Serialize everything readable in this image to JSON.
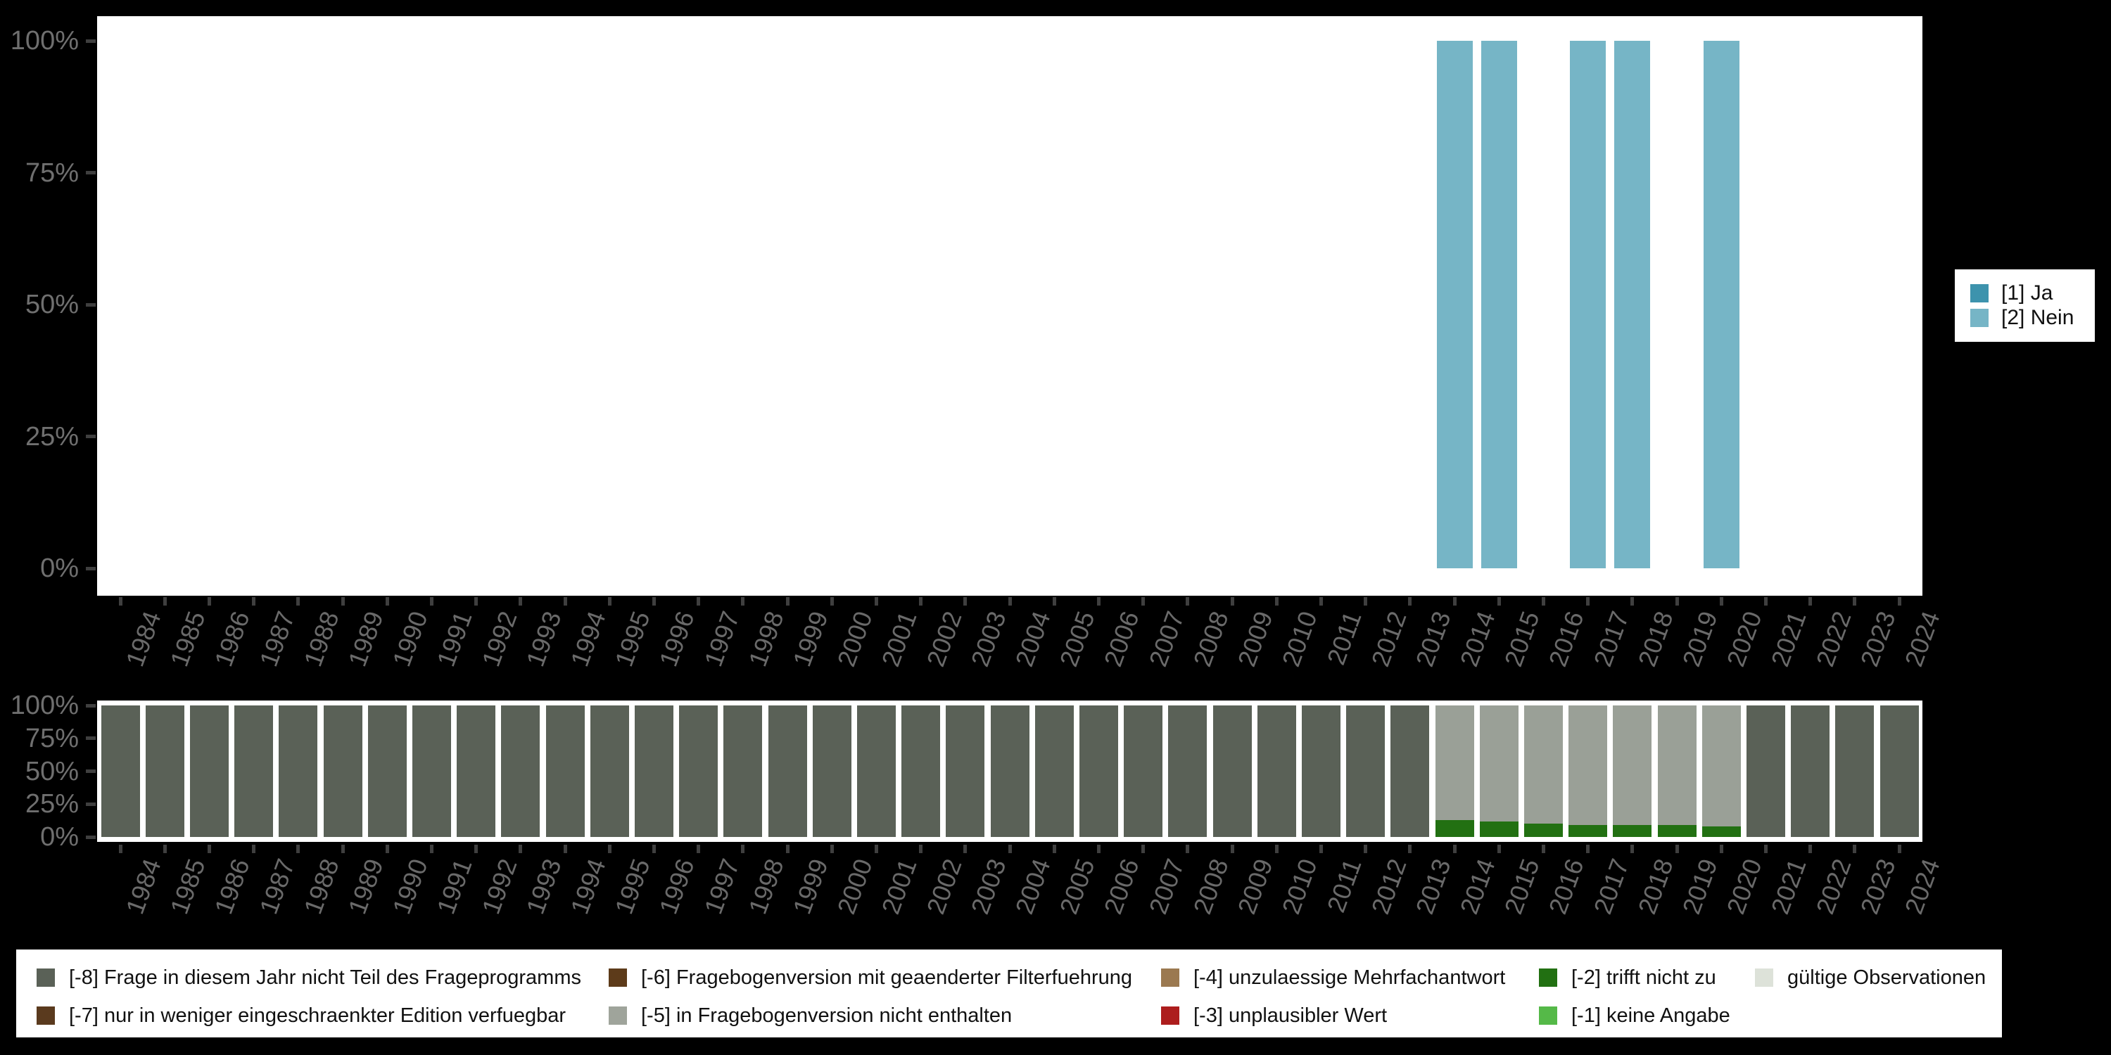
{
  "page": {
    "background": "#000000",
    "plot_background": "#ffffff"
  },
  "years": [
    "1984",
    "1985",
    "1986",
    "1987",
    "1988",
    "1989",
    "1990",
    "1991",
    "1992",
    "1993",
    "1994",
    "1995",
    "1996",
    "1997",
    "1998",
    "1999",
    "2000",
    "2001",
    "2002",
    "2003",
    "2004",
    "2005",
    "2006",
    "2007",
    "2008",
    "2009",
    "2010",
    "2011",
    "2012",
    "2013",
    "2014",
    "2015",
    "2016",
    "2017",
    "2018",
    "2019",
    "2020",
    "2021",
    "2022",
    "2023",
    "2024"
  ],
  "yticks": [
    {
      "label": "100%",
      "value": 100
    },
    {
      "label": "75%",
      "value": 75
    },
    {
      "label": "50%",
      "value": 50
    },
    {
      "label": "25%",
      "value": 25
    },
    {
      "label": "0%",
      "value": 0
    }
  ],
  "chart_data": [
    {
      "id": "answers",
      "type": "bar",
      "stacked": true,
      "unit": "percent",
      "ylim": [
        0,
        100
      ],
      "grid": false,
      "legend_position": "right",
      "categories": [
        "1984",
        "1985",
        "1986",
        "1987",
        "1988",
        "1989",
        "1990",
        "1991",
        "1992",
        "1993",
        "1994",
        "1995",
        "1996",
        "1997",
        "1998",
        "1999",
        "2000",
        "2001",
        "2002",
        "2003",
        "2004",
        "2005",
        "2006",
        "2007",
        "2008",
        "2009",
        "2010",
        "2011",
        "2012",
        "2013",
        "2014",
        "2015",
        "2016",
        "2017",
        "2018",
        "2019",
        "2020",
        "2021",
        "2022",
        "2023",
        "2024"
      ],
      "series": [
        {
          "name": "[1] Ja",
          "color": "#3d93ad",
          "values": [
            0,
            0,
            0,
            0,
            0,
            0,
            0,
            0,
            0,
            0,
            0,
            0,
            0,
            0,
            0,
            0,
            0,
            0,
            0,
            0,
            0,
            0,
            0,
            0,
            0,
            0,
            0,
            0,
            0,
            0,
            0,
            0,
            0,
            0,
            0,
            0,
            0,
            0,
            0,
            0,
            0
          ]
        },
        {
          "name": "[2] Nein",
          "color": "#76b5c6",
          "values": [
            0,
            0,
            0,
            0,
            0,
            0,
            0,
            0,
            0,
            0,
            0,
            0,
            0,
            0,
            0,
            0,
            0,
            0,
            0,
            0,
            0,
            0,
            0,
            0,
            0,
            0,
            0,
            0,
            0,
            0,
            100,
            100,
            0,
            100,
            100,
            0,
            100,
            0,
            0,
            0,
            0
          ]
        }
      ]
    },
    {
      "id": "missings",
      "type": "bar",
      "stacked": true,
      "unit": "percent",
      "ylim": [
        0,
        100
      ],
      "grid": false,
      "legend_position": "bottom",
      "categories": [
        "1984",
        "1985",
        "1986",
        "1987",
        "1988",
        "1989",
        "1990",
        "1991",
        "1992",
        "1993",
        "1994",
        "1995",
        "1996",
        "1997",
        "1998",
        "1999",
        "2000",
        "2001",
        "2002",
        "2003",
        "2004",
        "2005",
        "2006",
        "2007",
        "2008",
        "2009",
        "2010",
        "2011",
        "2012",
        "2013",
        "2014",
        "2015",
        "2016",
        "2017",
        "2018",
        "2019",
        "2020",
        "2021",
        "2022",
        "2023",
        "2024"
      ],
      "series": [
        {
          "name": "[-2] trifft nicht zu",
          "color": "#227012",
          "values": [
            0,
            0,
            0,
            0,
            0,
            0,
            0,
            0,
            0,
            0,
            0,
            0,
            0,
            0,
            0,
            0,
            0,
            0,
            0,
            0,
            0,
            0,
            0,
            0,
            0,
            0,
            0,
            0,
            0,
            0,
            13,
            12,
            10,
            9,
            9,
            9,
            8,
            0,
            0,
            0,
            0
          ]
        },
        {
          "name": "[-5] in Fragebogenversion nicht enthalten",
          "color": "#9aa097",
          "values": [
            0,
            0,
            0,
            0,
            0,
            0,
            0,
            0,
            0,
            0,
            0,
            0,
            0,
            0,
            0,
            0,
            0,
            0,
            0,
            0,
            0,
            0,
            0,
            0,
            0,
            0,
            0,
            0,
            0,
            0,
            87,
            88,
            90,
            91,
            91,
            91,
            92,
            0,
            0,
            0,
            0
          ]
        },
        {
          "name": "[-8] Frage in diesem Jahr nicht Teil des Frageprogramms",
          "color": "#5a6157",
          "values": [
            100,
            100,
            100,
            100,
            100,
            100,
            100,
            100,
            100,
            100,
            100,
            100,
            100,
            100,
            100,
            100,
            100,
            100,
            100,
            100,
            100,
            100,
            100,
            100,
            100,
            100,
            100,
            100,
            100,
            100,
            0,
            0,
            0,
            0,
            0,
            0,
            0,
            100,
            100,
            100,
            100
          ]
        }
      ]
    }
  ],
  "legend_right": {
    "items": [
      {
        "label": "[1] Ja",
        "color": "#3d93ad"
      },
      {
        "label": "[2] Nein",
        "color": "#76b5c6"
      }
    ]
  },
  "legend_bottom": {
    "columns": [
      [
        {
          "code": "-8",
          "label": "[-8] Frage in diesem Jahr nicht Teil des Frageprogramms",
          "color": "#5a6157"
        },
        {
          "code": "-7",
          "label": "[-7] nur in weniger eingeschraenkter Edition verfuegbar",
          "color": "#5a3a1e"
        }
      ],
      [
        {
          "code": "-6",
          "label": "[-6] Fragebogenversion mit geaenderter Filterfuehrung",
          "color": "#5d3b1a"
        },
        {
          "code": "-5",
          "label": "[-5] in Fragebogenversion nicht enthalten",
          "color": "#9fa49b"
        }
      ],
      [
        {
          "code": "-4",
          "label": "[-4] unzulaessige Mehrfachantwort",
          "color": "#9b7950"
        },
        {
          "code": "-3",
          "label": "[-3] unplausibler Wert",
          "color": "#ad1d1d"
        }
      ],
      [
        {
          "code": "-2",
          "label": "[-2] trifft nicht zu",
          "color": "#227012"
        },
        {
          "code": "-1",
          "label": "[-1] keine Angabe",
          "color": "#55b948"
        }
      ],
      [
        {
          "code": "valid",
          "label": "gültige Observationen",
          "color": "#dde2d9"
        }
      ]
    ]
  }
}
